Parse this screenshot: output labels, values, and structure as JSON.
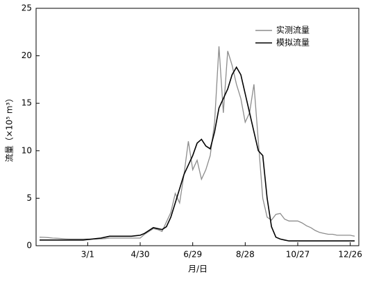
{
  "chart_data": {
    "type": "line",
    "xlabel": "月/日",
    "ylabel": "流量（×10⁵ m³）",
    "categories": [
      null,
      null,
      null,
      null,
      null,
      null,
      null,
      null,
      null,
      null,
      null,
      "3/1",
      null,
      null,
      null,
      null,
      null,
      null,
      null,
      null,
      null,
      null,
      null,
      "4/30",
      null,
      null,
      null,
      null,
      null,
      null,
      null,
      null,
      null,
      null,
      null,
      "6/29",
      null,
      null,
      null,
      null,
      null,
      null,
      null,
      null,
      null,
      null,
      null,
      "8/28",
      null,
      null,
      null,
      null,
      null,
      null,
      null,
      null,
      null,
      null,
      null,
      "10/27",
      null,
      null,
      null,
      null,
      null,
      null,
      null,
      null,
      null,
      null,
      null,
      "12/26",
      null
    ],
    "series": [
      {
        "name": "实测流量",
        "color": "#8c8c8c",
        "values": [
          0.9,
          0.88,
          0.85,
          0.8,
          0.78,
          0.75,
          0.72,
          0.7,
          0.7,
          0.7,
          0.7,
          0.7,
          0.7,
          0.7,
          0.72,
          0.75,
          0.8,
          0.8,
          0.8,
          0.8,
          0.8,
          0.8,
          0.8,
          0.8,
          1.2,
          1.5,
          1.8,
          1.7,
          1.5,
          2.5,
          3.5,
          5.5,
          4.5,
          7.5,
          11,
          8,
          9,
          7,
          8,
          9.5,
          13,
          21,
          14,
          20.5,
          19,
          17,
          15.5,
          13,
          14,
          17,
          11,
          5,
          3,
          2.7,
          3.3,
          3.4,
          2.8,
          2.6,
          2.6,
          2.6,
          2.4,
          2.1,
          1.9,
          1.6,
          1.4,
          1.3,
          1.2,
          1.2,
          1.1,
          1.1,
          1.1,
          1.1,
          1.0
        ]
      },
      {
        "name": "模拟流量",
        "color": "#000000",
        "values": [
          0.6,
          0.6,
          0.6,
          0.6,
          0.6,
          0.6,
          0.6,
          0.6,
          0.6,
          0.6,
          0.6,
          0.65,
          0.7,
          0.75,
          0.8,
          0.9,
          1.0,
          1.0,
          1.0,
          1.0,
          1.0,
          1.0,
          1.05,
          1.1,
          1.3,
          1.6,
          1.9,
          1.8,
          1.7,
          2.0,
          3.0,
          4.5,
          6.0,
          7.5,
          8.5,
          9.5,
          10.8,
          11.2,
          10.5,
          10.2,
          12,
          14.5,
          15.5,
          16.5,
          18,
          18.8,
          18,
          16,
          14,
          12,
          10,
          9.5,
          5,
          2,
          0.9,
          0.7,
          0.6,
          0.5,
          0.5,
          0.5,
          0.5,
          0.5,
          0.5,
          0.5,
          0.5,
          0.5,
          0.5,
          0.5,
          0.5,
          0.5,
          0.5,
          0.5,
          0.5
        ]
      }
    ],
    "ylim": [
      0,
      25
    ],
    "yticks": [
      0,
      5,
      10,
      15,
      20,
      25
    ],
    "grid": false,
    "legend": "top-right"
  }
}
